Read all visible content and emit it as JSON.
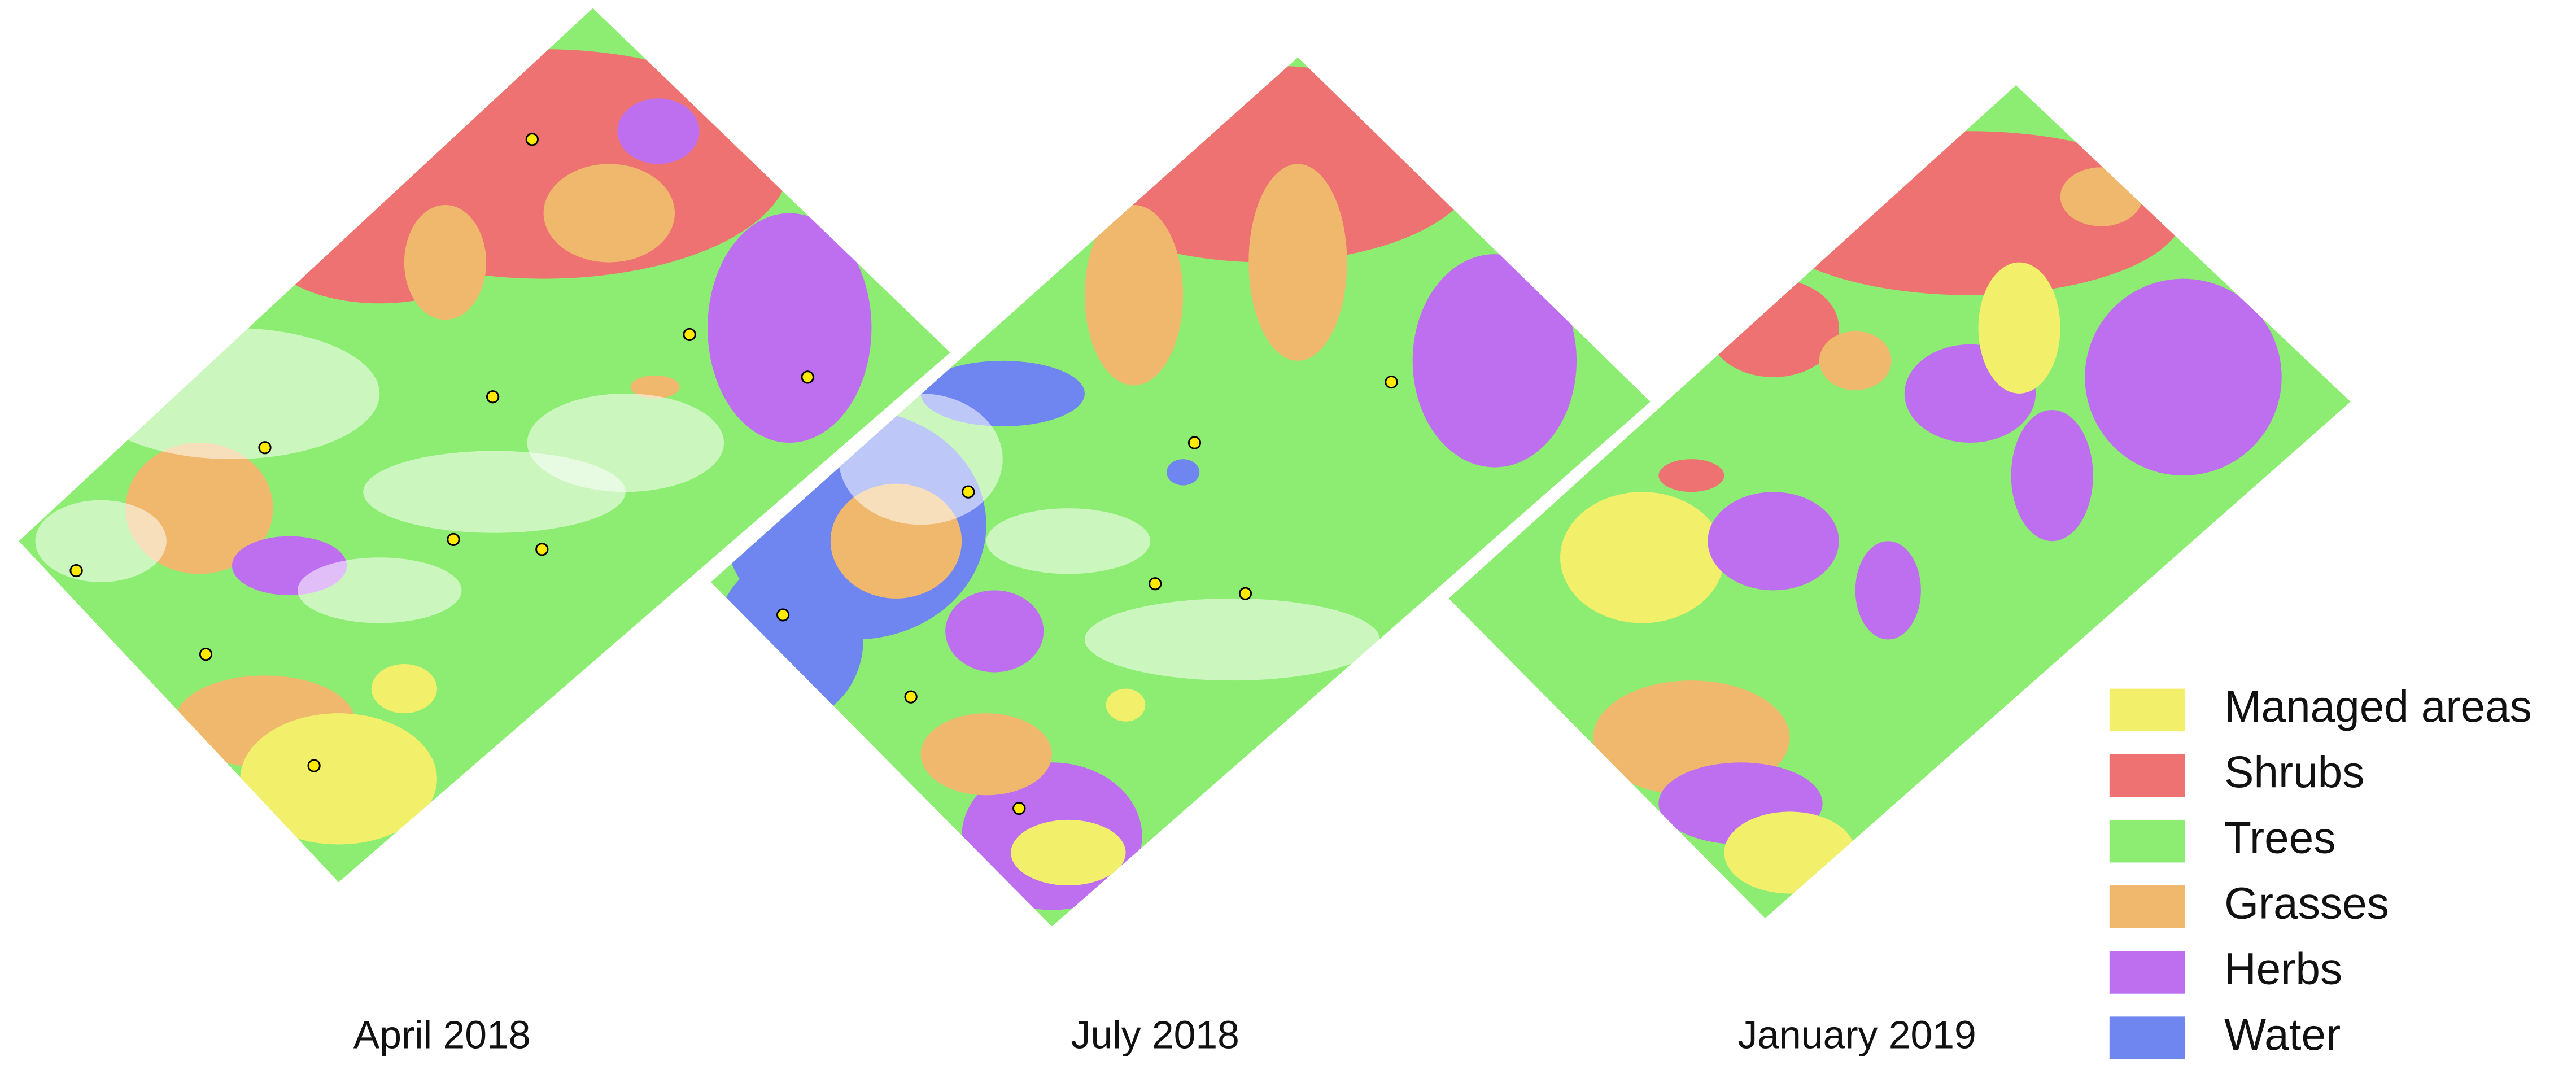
{
  "panels": [
    {
      "label": "April 2018"
    },
    {
      "label": "July 2018"
    },
    {
      "label": "January 2019"
    }
  ],
  "legend": [
    {
      "label": "Managed areas",
      "color": "#f2f06a"
    },
    {
      "label": "Shrubs",
      "color": "#ef7272"
    },
    {
      "label": "Trees",
      "color": "#8ded72"
    },
    {
      "label": "Grasses",
      "color": "#efb86c"
    },
    {
      "label": "Herbs",
      "color": "#be6ff0"
    },
    {
      "label": "Water",
      "color": "#6f86f0"
    }
  ]
}
